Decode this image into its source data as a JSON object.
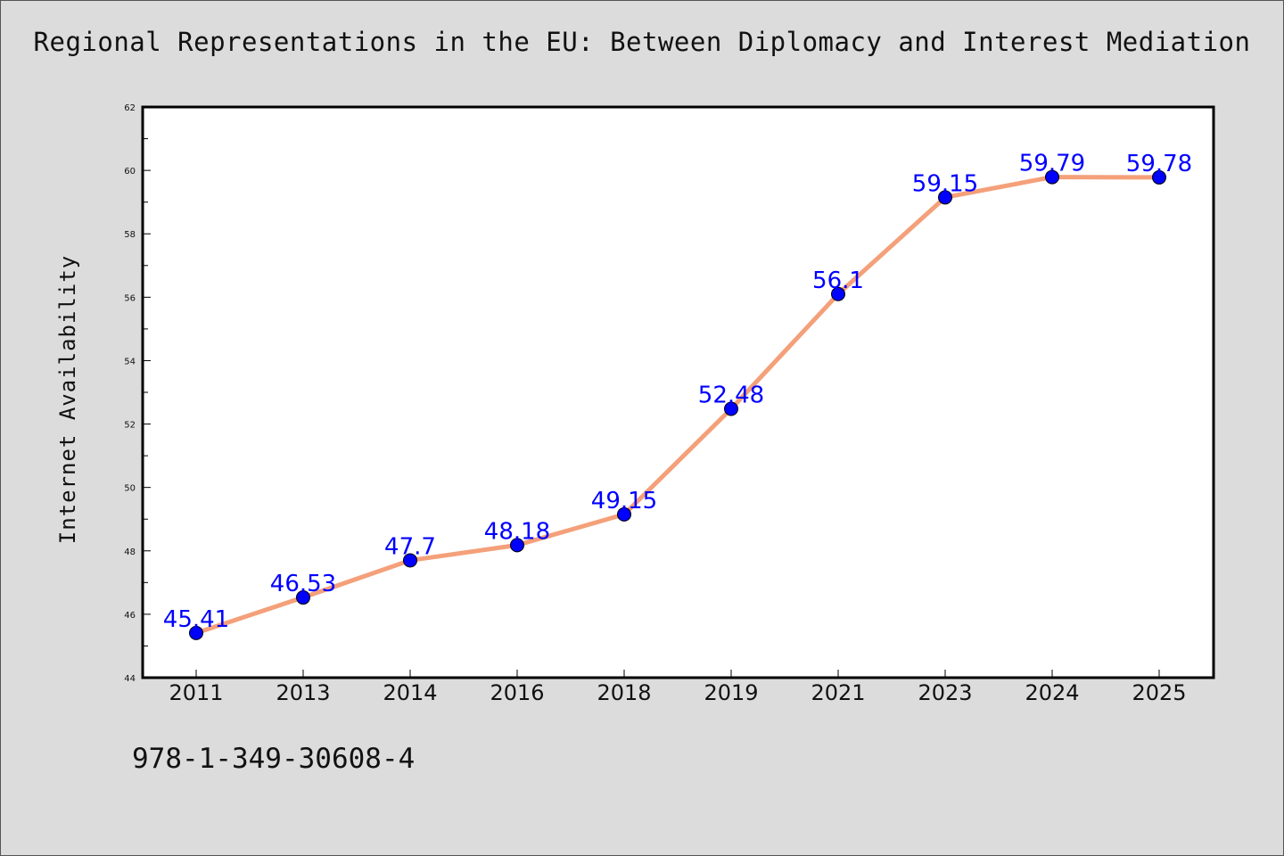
{
  "title": "Regional Representations in the EU: Between Diplomacy and Interest Mediation",
  "footnote": "978-1-349-30608-4",
  "colors": {
    "background": "#dcdcdc",
    "plot_background": "#ffffff",
    "line": "#f4a07a",
    "marker": "#0000ff",
    "data_label": "#0000ff"
  },
  "chart_data": {
    "type": "line",
    "title": "Regional Representations in the EU: Between Diplomacy and Interest Mediation",
    "xlabel": "",
    "ylabel": "Internet Availability",
    "categories": [
      "2011",
      "2013",
      "2014",
      "2016",
      "2018",
      "2019",
      "2021",
      "2023",
      "2024",
      "2025"
    ],
    "series": [
      {
        "values": [
          45.41,
          46.53,
          47.7,
          48.18,
          49.15,
          52.48,
          56.1,
          59.15,
          59.79,
          59.78
        ],
        "labels": [
          "45.41",
          "46.53",
          "47.7",
          "48.18",
          "49.15",
          "52.48",
          "56.1",
          "59.15",
          "59.79",
          "59.78"
        ]
      }
    ],
    "ylim": [
      44,
      62
    ],
    "yticks": [
      44,
      46,
      48,
      50,
      52,
      54,
      56,
      58,
      60,
      62
    ],
    "grid": false,
    "legend": "none"
  }
}
